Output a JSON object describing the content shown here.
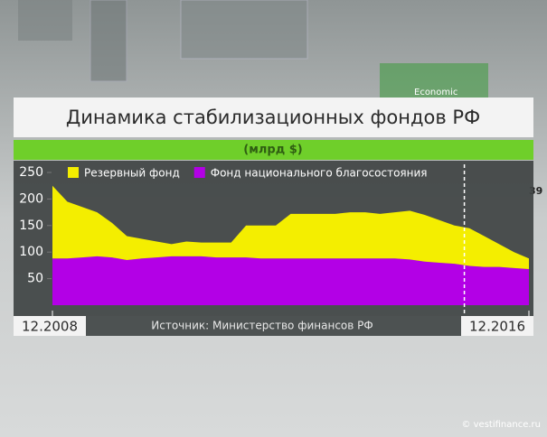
{
  "chart_data": {
    "type": "stacked_area",
    "title": "Динамика стабилизационных фондов РФ",
    "subtitle": "(млрд $)",
    "source": "Источник: Министерство финансов РФ",
    "watermark": "© vestifinance.ru",
    "background_texts": [
      "Economic",
      "39"
    ],
    "x": [
      2008.917,
      2009.167,
      2009.417,
      2009.667,
      2009.917,
      2010.167,
      2010.417,
      2010.667,
      2010.917,
      2011.167,
      2011.417,
      2011.667,
      2011.917,
      2012.167,
      2012.417,
      2012.667,
      2012.917,
      2013.167,
      2013.417,
      2013.667,
      2013.917,
      2014.167,
      2014.417,
      2014.667,
      2014.917,
      2015.167,
      2015.417,
      2015.667,
      2015.917,
      2016.167,
      2016.417,
      2016.667,
      2016.917
    ],
    "xlim": [
      2008.917,
      2016.917
    ],
    "xticks": [
      {
        "value": 2008.917,
        "label": "12.2008"
      },
      {
        "value": 2016.917,
        "label": "12.2016"
      }
    ],
    "vline_x": 2015.833,
    "ylim": [
      0,
      250
    ],
    "yticks": [
      50,
      100,
      150,
      200,
      250
    ],
    "legend": "top-left",
    "series": [
      {
        "name": "Резервный фонд",
        "color": "#f4ee00",
        "values": [
          137,
          107,
          95,
          83,
          65,
          45,
          37,
          30,
          23,
          28,
          26,
          28,
          28,
          60,
          62,
          62,
          84,
          84,
          84,
          84,
          87,
          87,
          84,
          87,
          92,
          88,
          80,
          72,
          71,
          58,
          43,
          30,
          20
        ]
      },
      {
        "name": "Фонд национального благосостояния",
        "color": "#b300e6",
        "values": [
          88,
          88,
          90,
          92,
          90,
          85,
          88,
          90,
          92,
          92,
          92,
          90,
          90,
          90,
          88,
          88,
          88,
          88,
          88,
          88,
          88,
          88,
          88,
          88,
          86,
          82,
          80,
          78,
          74,
          72,
          72,
          70,
          68
        ]
      }
    ]
  }
}
